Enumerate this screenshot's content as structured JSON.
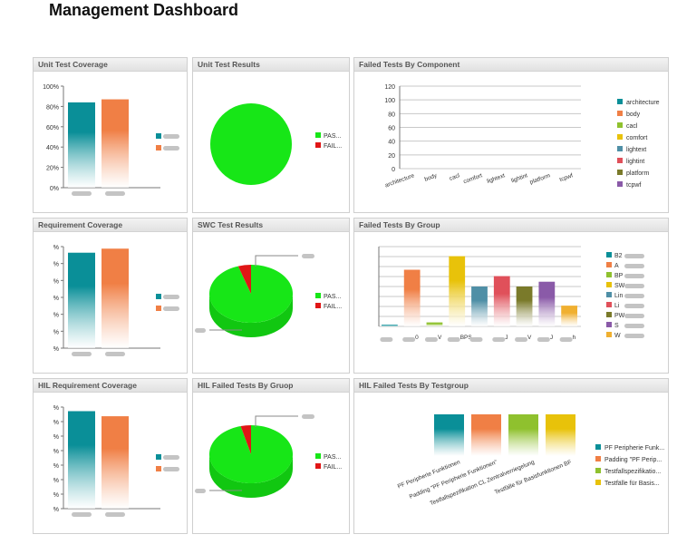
{
  "page": {
    "title": "Management Dashboard"
  },
  "panels": [
    {
      "id": "p1",
      "title": "Unit Test Coverage"
    },
    {
      "id": "p2",
      "title": "Unit Test Results"
    },
    {
      "id": "p3",
      "title": "Failed Tests By Component"
    },
    {
      "id": "p4",
      "title": "Requirement Coverage"
    },
    {
      "id": "p5",
      "title": "SWC Test Results"
    },
    {
      "id": "p6",
      "title": "Failed Tests By Group"
    },
    {
      "id": "p7",
      "title": "HIL Requirement Coverage"
    },
    {
      "id": "p8",
      "title": "HIL Failed Tests By Gruop"
    },
    {
      "id": "p9",
      "title": "HIL Failed Tests By Testgroup"
    }
  ],
  "colors": {
    "teal": "#0a8f98",
    "orange": "#f07f45",
    "green": "#17e617",
    "red": "#e01616"
  },
  "chart_data": [
    {
      "panel": "p1",
      "type": "bar",
      "ylim": [
        0,
        100
      ],
      "yticks": [
        "0%",
        "20%",
        "40%",
        "60%",
        "80%",
        "100%"
      ],
      "values": [
        84,
        87
      ],
      "colors": [
        "#0a8f98",
        "#f07f45"
      ]
    },
    {
      "panel": "p2",
      "type": "pie",
      "values": [
        100,
        0
      ],
      "legend": [
        "PAS...",
        "FAIL..."
      ],
      "colors": [
        "#17e617",
        "#e01616"
      ]
    },
    {
      "panel": "p3",
      "type": "bar",
      "ylim": [
        0,
        120
      ],
      "yticks": [
        "0",
        "20",
        "40",
        "60",
        "80",
        "100",
        "120"
      ],
      "categories": [
        "architecture",
        "body",
        "cacl",
        "comfort",
        "lightext",
        "lightint",
        "platform",
        "tcpwf"
      ],
      "values": [
        0,
        0,
        0,
        0,
        0,
        0,
        0,
        0
      ],
      "legend": [
        "architecture",
        "body",
        "cacl",
        "comfort",
        "lightext",
        "lightint",
        "platform",
        "tcpwf"
      ],
      "colors": [
        "#0a8f98",
        "#f07f45",
        "#8fc12e",
        "#e8c20a",
        "#4f8fa6",
        "#e0505a",
        "#7a7a2a",
        "#8a5aa8"
      ]
    },
    {
      "panel": "p4",
      "type": "bar",
      "yticks": [
        "%",
        "%",
        "%",
        "%",
        "%",
        "%",
        "%"
      ],
      "values": [
        94,
        98
      ],
      "colors": [
        "#0a8f98",
        "#f07f45"
      ]
    },
    {
      "panel": "p5",
      "type": "pie",
      "values": [
        95,
        5
      ],
      "legend": [
        "PAS...",
        "FAIL..."
      ],
      "colors": [
        "#17e617",
        "#e01616"
      ]
    },
    {
      "panel": "p6",
      "type": "bar",
      "categories": [
        "",
        "0",
        "V",
        "BPS",
        "",
        "J",
        "V",
        "J",
        "h"
      ],
      "values": [
        2,
        71,
        5,
        88,
        50,
        63,
        50,
        56,
        26
      ],
      "colors": [
        "#0a8f98",
        "#f07f45",
        "#8fc12e",
        "#e8c20a",
        "#4f8fa6",
        "#e0505a",
        "#7a7a2a",
        "#8a5aa8",
        "#f0b030"
      ],
      "legend": [
        "B2",
        "A",
        "BP",
        "SW",
        "Lin",
        "Li",
        "PW",
        "S",
        "W"
      ]
    },
    {
      "panel": "p7",
      "type": "bar",
      "yticks": [
        "%",
        "%",
        "%",
        "%",
        "%",
        "%",
        "%",
        "%"
      ],
      "values": [
        96,
        91
      ],
      "colors": [
        "#0a8f98",
        "#f07f45"
      ]
    },
    {
      "panel": "p8",
      "type": "pie",
      "values": [
        96,
        4
      ],
      "legend": [
        "PAS...",
        "FAIL..."
      ],
      "colors": [
        "#17e617",
        "#e01616"
      ]
    },
    {
      "panel": "p9",
      "type": "bar",
      "categories": [
        "PF Peripherie Funktionen",
        "Padding \"PF Peripherie Funktionen\"",
        "Testfallspezifikation CL Zentralverriegelung",
        "Testfälle für Basisfunktionen BF"
      ],
      "values": [
        1,
        1,
        1,
        1
      ],
      "colors": [
        "#0a8f98",
        "#f07f45",
        "#8fc12e",
        "#e8c20a"
      ],
      "legend": [
        "PF Peripherie Funk...",
        "Padding \"PF Perip...",
        "Testfallspezifikatio...",
        "Testfälle für Basis..."
      ]
    }
  ]
}
